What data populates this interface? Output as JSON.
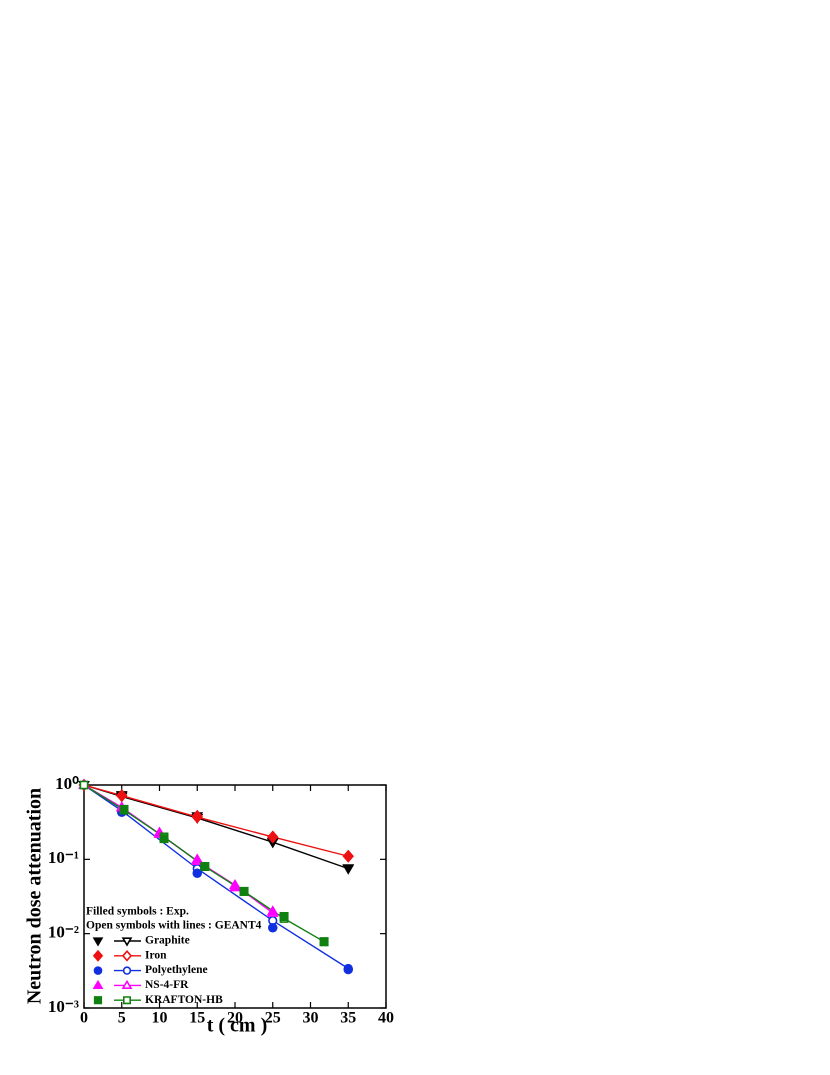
{
  "chart_data": {
    "type": "line",
    "y_label": "Neutron dose attenuation",
    "x_label": "t ( cm )",
    "legend_header": [
      "Filled symbols : Exp.",
      "Open symbols with lines : GEANT4"
    ],
    "xlim": [
      0,
      40
    ],
    "xticks": [
      0,
      5,
      10,
      15,
      20,
      25,
      30,
      35,
      40
    ],
    "ylim": [
      0.001,
      1
    ],
    "log_y": true,
    "yticks": [
      {
        "value": 1,
        "label": "10⁰"
      },
      {
        "value": 0.1,
        "label": "10⁻¹"
      },
      {
        "value": 0.01,
        "label": "10⁻²"
      },
      {
        "value": 0.001,
        "label": "10⁻³"
      }
    ],
    "series": [
      {
        "name": "Graphite",
        "color": "#000000",
        "marker": "triangle-down",
        "exp_x": [
          5,
          15,
          25,
          35
        ],
        "exp_values": [
          0.73,
          0.38,
          0.17,
          0.076
        ],
        "sim_x": [
          0,
          5,
          15,
          25,
          35
        ],
        "sim_values": [
          1,
          0.7,
          0.36,
          0.17,
          0.075
        ]
      },
      {
        "name": "Iron",
        "color": "#ee1111",
        "marker": "diamond",
        "exp_x": [
          5,
          15,
          25,
          35
        ],
        "exp_values": [
          0.72,
          0.38,
          0.2,
          0.11
        ],
        "sim_x": [
          0,
          5,
          15,
          25,
          35
        ],
        "sim_values": [
          1,
          0.72,
          0.37,
          0.2,
          0.11
        ]
      },
      {
        "name": "Polyethylene",
        "color": "#1030e0",
        "marker": "circle",
        "exp_x": [
          5,
          15,
          25,
          35
        ],
        "exp_values": [
          0.43,
          0.065,
          0.012,
          0.0033
        ],
        "sim_x": [
          0,
          5,
          15,
          25,
          35
        ],
        "sim_values": [
          1,
          0.45,
          0.075,
          0.015,
          0.0034
        ]
      },
      {
        "name": "NS-4-FR",
        "color": "#ff00ff",
        "marker": "triangle-up",
        "exp_x": [
          5,
          10,
          15,
          20,
          25
        ],
        "exp_values": [
          0.5,
          0.23,
          0.1,
          0.042,
          0.02
        ],
        "sim_x": [
          0,
          5,
          10,
          15,
          20,
          25
        ],
        "sim_values": [
          1,
          0.5,
          0.22,
          0.095,
          0.045,
          0.019
        ]
      },
      {
        "name": "KRAFTON-HB",
        "color": "#108010",
        "marker": "square",
        "exp_x": [
          5.3,
          10.6,
          16,
          21.2,
          26.5,
          31.8
        ],
        "exp_values": [
          0.47,
          0.19,
          0.08,
          0.037,
          0.017,
          0.0078
        ],
        "sim_x": [
          0,
          5.3,
          10.6,
          16,
          21.2,
          26.5,
          31.8
        ],
        "sim_values": [
          1,
          0.46,
          0.2,
          0.08,
          0.037,
          0.016,
          0.0078
        ]
      }
    ]
  }
}
